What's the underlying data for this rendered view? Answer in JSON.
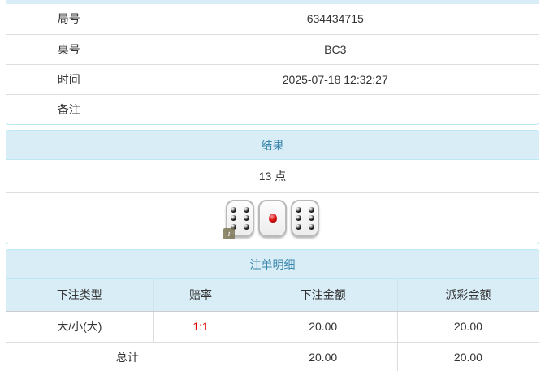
{
  "colors": {
    "heading_bg": "#d9edf7",
    "heading_text": "#3a87ad",
    "panel_border": "#bce8f1",
    "inner_border": "#dddddd",
    "odds_red": "#dd0000"
  },
  "info_table": {
    "rows": [
      {
        "label": "局号",
        "value": "634434715"
      },
      {
        "label": "桌号",
        "value": "BC3"
      },
      {
        "label": "时间",
        "value": "2025-07-18 12:32:27"
      },
      {
        "label": "备注",
        "value": ""
      }
    ]
  },
  "result_panel": {
    "title": "结果",
    "points": "13 点",
    "dice": [
      6,
      1,
      6
    ],
    "info_badge": "i"
  },
  "bets_panel": {
    "title": "注单明细",
    "columns": [
      "下注类型",
      "赔率",
      "下注金额",
      "派彩金额"
    ],
    "rows": [
      {
        "type": "大/小(大)",
        "odds": "1:1",
        "bet": "20.00",
        "payout": "20.00"
      }
    ],
    "total": {
      "label": "总计",
      "bet": "20.00",
      "payout": "20.00"
    }
  }
}
